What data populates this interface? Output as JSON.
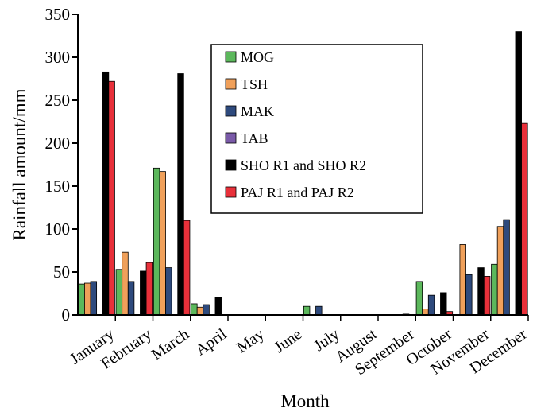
{
  "chart_data": {
    "type": "bar",
    "title": "",
    "xlabel": "Month",
    "ylabel": "Rainfall amount/mm",
    "ylim": [
      0,
      350
    ],
    "yticks": [
      0,
      50,
      100,
      150,
      200,
      250,
      300,
      350
    ],
    "grid": false,
    "legend_position": "top-center",
    "categories": [
      "January",
      "February",
      "March",
      "April",
      "May",
      "June",
      "July",
      "August",
      "September",
      "October",
      "November",
      "December"
    ],
    "series": [
      {
        "name": "MOG",
        "color": "#5cb85c",
        "values": [
          36,
          53,
          171,
          13,
          0,
          0,
          10,
          0,
          0,
          39,
          0,
          59
        ]
      },
      {
        "name": "TSH",
        "color": "#f0a05a",
        "values": [
          37,
          73,
          167,
          9,
          0,
          0,
          0,
          0,
          0,
          7,
          82,
          103
        ]
      },
      {
        "name": "MAK",
        "color": "#2e4a7d",
        "values": [
          39,
          39,
          55,
          12,
          0,
          0,
          10,
          0,
          0,
          23,
          47,
          111
        ]
      },
      {
        "name": "TAB",
        "color": "#7a5aa8",
        "values": [
          0,
          0,
          0,
          0,
          0,
          0,
          0,
          0,
          0,
          0,
          0,
          0
        ]
      },
      {
        "name": "SHO R1 and SHO R2",
        "color": "#000000",
        "values": [
          283,
          51,
          281,
          20,
          0,
          0,
          0,
          0,
          1,
          26,
          55,
          330
        ]
      },
      {
        "name": "PAJ R1 and PAJ R2",
        "color": "#e8303a",
        "values": [
          272,
          61,
          110,
          0,
          0,
          0,
          0,
          0,
          0,
          4,
          45,
          223
        ]
      }
    ]
  }
}
